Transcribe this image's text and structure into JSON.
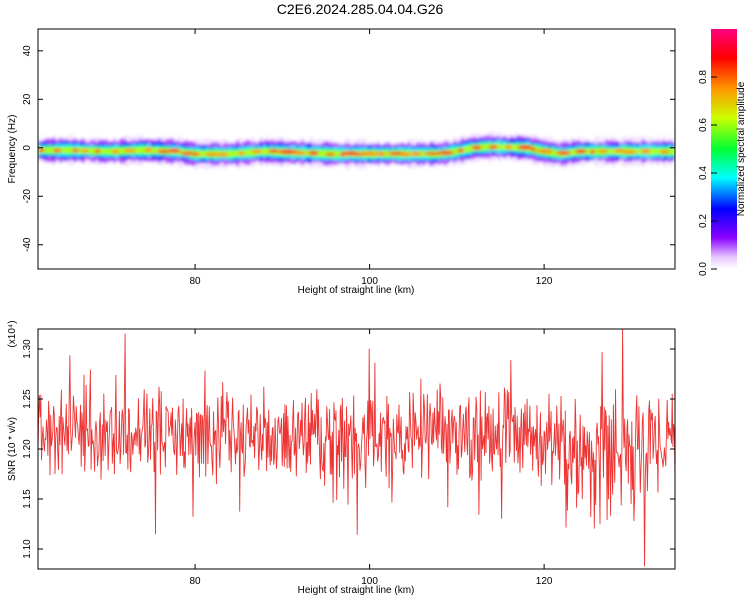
{
  "title": "C2E6.2024.285.04.04.G26",
  "chart_data": [
    {
      "type": "heatmap",
      "xlabel": "Height of straight line (km)",
      "ylabel": "Frequency (Hz)",
      "xlim": [
        62,
        135
      ],
      "ylim": [
        -50,
        49
      ],
      "xticks": [
        80,
        100,
        120
      ],
      "xtick_labels": [
        "80",
        "100",
        "120"
      ],
      "yticks": [
        -40,
        -20,
        0,
        20,
        40
      ],
      "ytick_labels": [
        "-40",
        "-20",
        "0",
        "20",
        "40"
      ],
      "colorbar": {
        "label": "Normalized spectral amplitude",
        "range": [
          0.0,
          1.0
        ],
        "ticks": [
          0.0,
          0.2,
          0.4,
          0.6,
          0.8
        ],
        "tick_labels": [
          "0.0",
          "0.2",
          "0.4",
          "0.6",
          "0.8"
        ]
      },
      "band_center_hz": {
        "x": [
          62,
          66,
          70,
          74,
          78,
          80,
          84,
          88,
          92,
          96,
          100,
          104,
          108,
          110,
          112,
          114,
          118,
          120,
          122,
          124,
          128,
          132,
          135
        ],
        "y": [
          -1,
          -1,
          -1.5,
          -1,
          -1.5,
          -2.5,
          -2.5,
          -1.5,
          -2,
          -2.5,
          -2.5,
          -2.5,
          -2.5,
          -1.5,
          0,
          0.5,
          0,
          -1.5,
          -2.5,
          -1.5,
          -1.5,
          -1.5,
          -1.5
        ]
      }
    },
    {
      "type": "line",
      "xlabel": "Height of straight line (km)",
      "ylabel": "SNR (10 * v/v)",
      "multiplier_label": "(x10⁴)",
      "xlim": [
        62,
        135
      ],
      "ylim": [
        1.08,
        1.32
      ],
      "xticks": [
        80,
        100,
        120
      ],
      "xtick_labels": [
        "80",
        "100",
        "120"
      ],
      "yticks": [
        1.1,
        1.15,
        1.2,
        1.25,
        1.3
      ],
      "ytick_labels": [
        "1.10",
        "1.15",
        "1.20",
        "1.25",
        "1.30"
      ],
      "series": [
        {
          "color": "#ee3333",
          "x_range": [
            62,
            135
          ],
          "y_mean": 1.215,
          "y_typical_range": [
            1.16,
            1.28
          ],
          "notable_points": [
            {
              "x": 72,
              "y": 1.315
            },
            {
              "x": 75.5,
              "y": 1.115
            },
            {
              "x": 100,
              "y": 1.3
            },
            {
              "x": 129,
              "y": 1.32
            },
            {
              "x": 131.5,
              "y": 1.083
            }
          ]
        }
      ]
    }
  ]
}
